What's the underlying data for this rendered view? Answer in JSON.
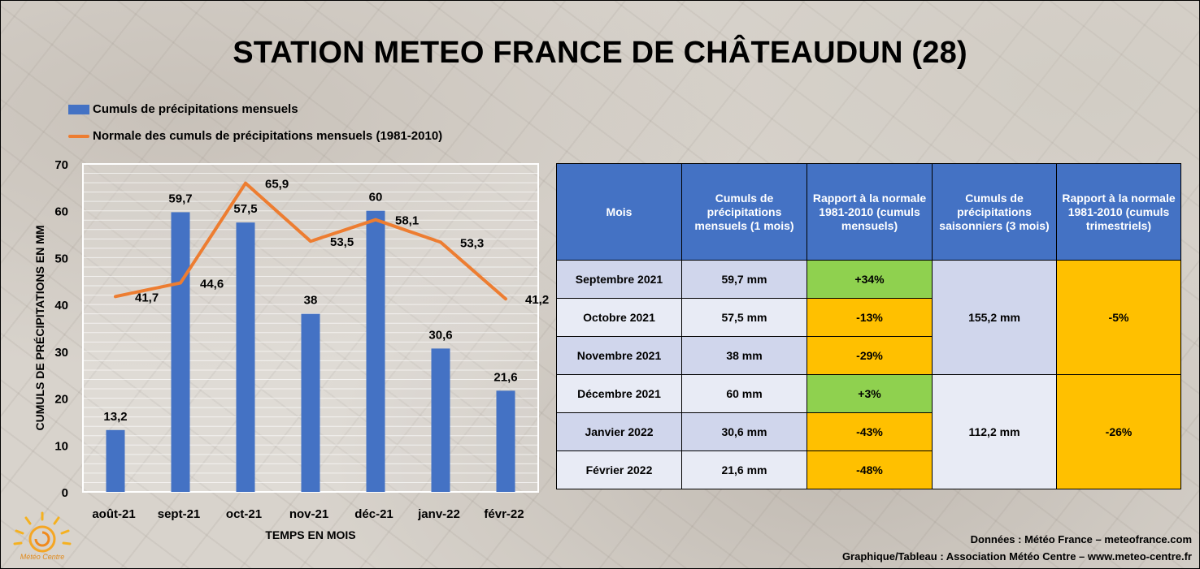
{
  "title": "STATION METEO FRANCE DE CHÂTEAUDUN (28)",
  "colors": {
    "bar": "#4472c4",
    "line": "#ed7d31",
    "header": "#4472c4",
    "green": "#8fd14f",
    "orange": "#ffc000"
  },
  "chart_data": {
    "type": "bar",
    "categories": [
      "août-21",
      "sept-21",
      "oct-21",
      "nov-21",
      "déc-21",
      "janv-22",
      "févr-22"
    ],
    "series": [
      {
        "name": "Cumuls de précipitations mensuels",
        "type": "bar",
        "values": [
          13.2,
          59.7,
          57.5,
          38,
          60,
          30.6,
          21.6
        ],
        "labels": [
          "13,2",
          "59,7",
          "57,5",
          "38",
          "60",
          "30,6",
          "21,6"
        ]
      },
      {
        "name": "Normale des cumuls de précipitations mensuels (1981-2010)",
        "type": "line",
        "values": [
          41.7,
          44.6,
          65.9,
          53.5,
          58.1,
          53.3,
          41.2
        ],
        "labels": [
          "41,7",
          "44,6",
          "65,9",
          "53,5",
          "58,1",
          "53,3",
          "41,2"
        ]
      }
    ],
    "ylabel": "CUMULS DE PRÉCIPITATIONS EN MM",
    "xlabel": "TEMPS EN MOIS",
    "ylim": [
      0,
      70
    ],
    "yticks": [
      0,
      10,
      20,
      30,
      40,
      50,
      60,
      70
    ],
    "grid": true,
    "legend": "top-left"
  },
  "table": {
    "headers": [
      "Mois",
      "Cumuls de précipitations mensuels (1 mois)",
      "Rapport à la normale 1981-2010 (cumuls mensuels)",
      "Cumuls de précipitations saisonniers (3 mois)",
      "Rapport à la normale 1981-2010 (cumuls trimestriels)"
    ],
    "rows": [
      {
        "month": "Septembre 2021",
        "value": "59,7 mm",
        "ratio": "+34%",
        "status": "green"
      },
      {
        "month": "Octobre 2021",
        "value": "57,5 mm",
        "ratio": "-13%",
        "status": "orange"
      },
      {
        "month": "Novembre 2021",
        "value": "38 mm",
        "ratio": "-29%",
        "status": "orange"
      },
      {
        "month": "Décembre 2021",
        "value": "60 mm",
        "ratio": "+3%",
        "status": "green"
      },
      {
        "month": "Janvier 2022",
        "value": "30,6 mm",
        "ratio": "-43%",
        "status": "orange"
      },
      {
        "month": "Février 2022",
        "value": "21,6 mm",
        "ratio": "-48%",
        "status": "orange"
      }
    ],
    "seasons": [
      {
        "total": "155,2 mm",
        "ratio": "-5%"
      },
      {
        "total": "112,2 mm",
        "ratio": "-26%"
      }
    ]
  },
  "credits": {
    "data": "Données : Météo France – meteofrance.com",
    "graphic": "Graphique/Tableau : Association Météo Centre – www.meteo-centre.fr"
  },
  "logo_text": "Météo Centre"
}
